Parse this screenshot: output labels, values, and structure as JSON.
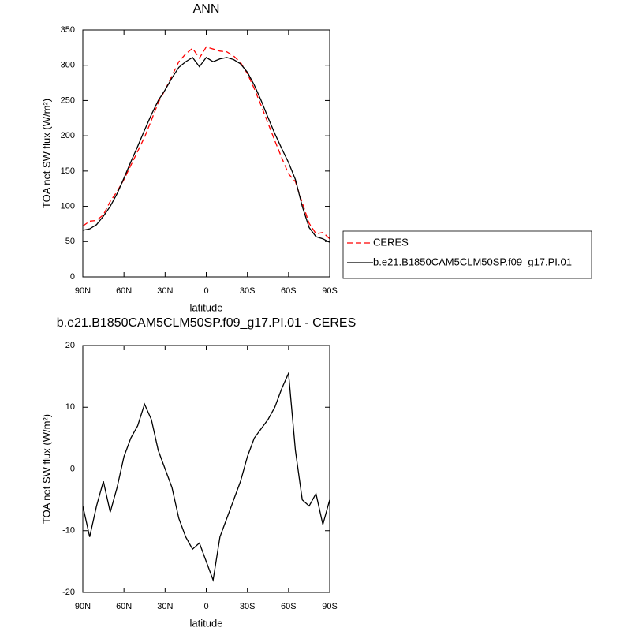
{
  "chart_data": [
    {
      "type": "line",
      "title": "ANN",
      "xlabel": "latitude",
      "ylabel": "TOA net SW flux (W/m²)",
      "x": [
        90,
        85,
        80,
        75,
        70,
        65,
        60,
        55,
        50,
        45,
        40,
        35,
        30,
        25,
        20,
        15,
        10,
        5,
        0,
        -5,
        -10,
        -15,
        -20,
        -25,
        -30,
        -35,
        -40,
        -45,
        -50,
        -55,
        -60,
        -65,
        -70,
        -75,
        -80,
        -85,
        -90
      ],
      "xlim": [
        90,
        -90
      ],
      "xticks": [
        {
          "value": 90,
          "label": "90N"
        },
        {
          "value": 60,
          "label": "60N"
        },
        {
          "value": 30,
          "label": "30N"
        },
        0,
        {
          "value": -30,
          "label": "30S"
        },
        {
          "value": -60,
          "label": "60S"
        },
        {
          "value": -90,
          "label": "90S"
        }
      ],
      "ylim": [
        0,
        350
      ],
      "yticks": [
        0,
        50,
        100,
        150,
        200,
        250,
        300,
        350
      ],
      "legend": "outside-right",
      "series": [
        {
          "name": "CERES",
          "color": "#ff0000",
          "line_style": "dashed",
          "values": [
            72,
            79,
            80,
            88,
            107,
            121,
            138,
            158,
            178,
            198,
            222,
            247,
            265,
            285,
            305,
            316,
            324,
            310,
            326,
            323,
            320,
            319,
            313,
            304,
            288,
            267,
            243,
            218,
            193,
            169,
            146,
            135,
            105,
            76,
            61,
            63,
            54
          ]
        },
        {
          "name": "b.e21.B1850CAM5CLM50SP.f09_g17.PI.01",
          "color": "#000000",
          "line_style": "solid",
          "values": [
            66,
            68,
            74,
            86,
            100,
            118,
            140,
            163,
            185,
            208,
            230,
            250,
            265,
            282,
            297,
            305,
            311,
            298,
            311,
            305,
            309,
            311,
            308,
            302,
            290,
            272,
            250,
            226,
            203,
            182,
            162,
            138,
            100,
            70,
            57,
            54,
            49
          ]
        }
      ]
    },
    {
      "type": "line",
      "title": "b.e21.B1850CAM5CLM50SP.f09_g17.PI.01 - CERES",
      "xlabel": "latitude",
      "ylabel": "TOA net SW flux (W/m²)",
      "x": [
        90,
        85,
        80,
        75,
        70,
        65,
        60,
        55,
        50,
        45,
        40,
        35,
        30,
        25,
        20,
        15,
        10,
        5,
        0,
        -5,
        -10,
        -15,
        -20,
        -25,
        -30,
        -35,
        -40,
        -45,
        -50,
        -55,
        -60,
        -65,
        -70,
        -75,
        -80,
        -85,
        -90
      ],
      "xlim": [
        90,
        -90
      ],
      "xticks": [
        {
          "value": 90,
          "label": "90N"
        },
        {
          "value": 60,
          "label": "60N"
        },
        {
          "value": 30,
          "label": "30N"
        },
        0,
        {
          "value": -30,
          "label": "30S"
        },
        {
          "value": -60,
          "label": "60S"
        },
        {
          "value": -90,
          "label": "90S"
        }
      ],
      "ylim": [
        -20,
        20
      ],
      "yticks": [
        -20,
        -10,
        0,
        10,
        20
      ],
      "series": [
        {
          "color": "#000000",
          "line_style": "solid",
          "values": [
            -6,
            -11,
            -6,
            -2,
            -7,
            -3,
            2,
            5,
            7,
            10.5,
            8,
            3,
            0,
            -3,
            -8,
            -11,
            -13,
            -12,
            -15,
            -18,
            -11,
            -8,
            -5,
            -2,
            2,
            5,
            6.5,
            8,
            10,
            13,
            15.5,
            3,
            -5,
            -6,
            -4,
            -9,
            -5
          ]
        }
      ]
    }
  ]
}
